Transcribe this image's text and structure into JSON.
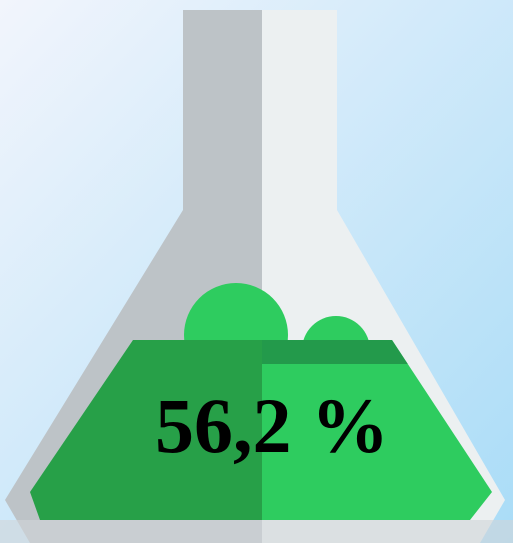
{
  "stat": {
    "label": "56,2 %"
  }
}
